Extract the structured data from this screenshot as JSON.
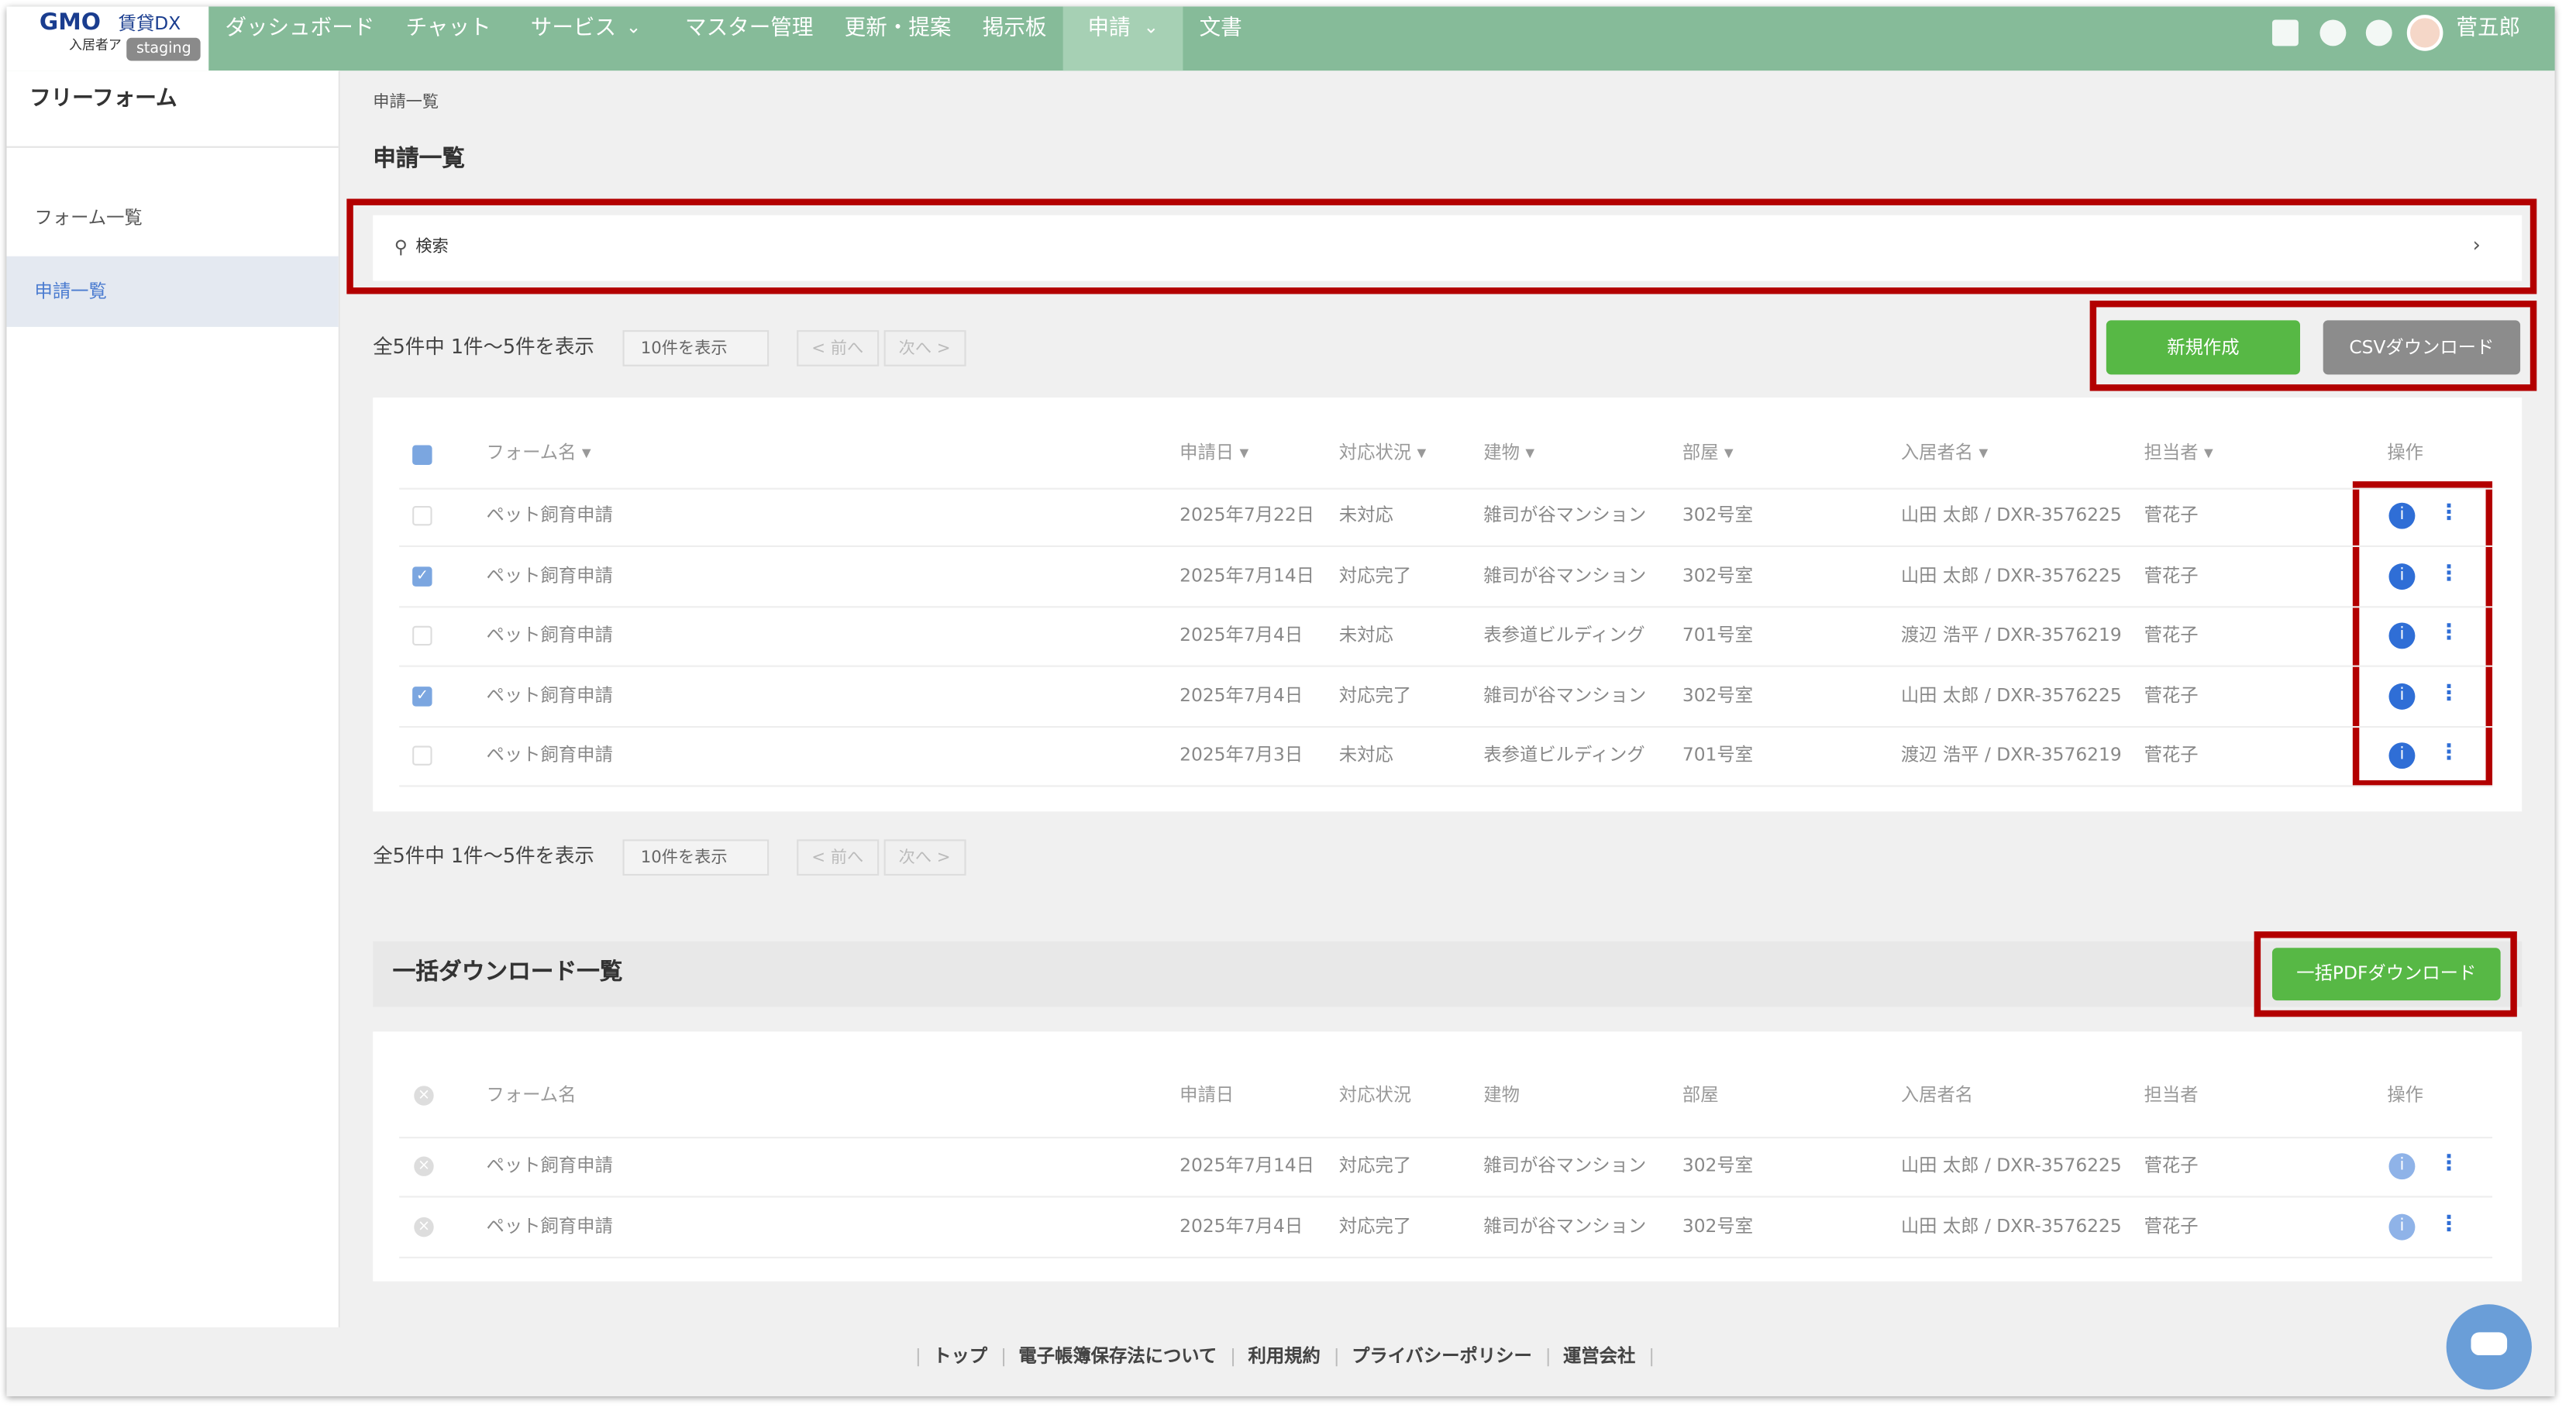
{
  "header": {
    "logo": "GMO",
    "logo_sub": "賃貸DX",
    "logo_sub2": "入居者ア",
    "env": "staging",
    "nav": [
      "ダッシュボード",
      "チャット",
      "サービス",
      "マスター管理",
      "更新・提案",
      "掲示板",
      "申請",
      "文書"
    ],
    "user": "菅五郎"
  },
  "sidebar": {
    "title": "フリーフォーム",
    "items": [
      "フォーム一覧",
      "申請一覧"
    ]
  },
  "breadcrumb": "申請一覧",
  "page_title": "申請一覧",
  "search": "検索",
  "pagination": {
    "summary": "全5件中 1件〜5件を表示",
    "per_page": "10件を表示",
    "prev": "< 前へ",
    "next": "次へ >"
  },
  "actions": {
    "create": "新規作成",
    "csv": "CSVダウンロード"
  },
  "table": {
    "headers": [
      "フォーム名",
      "申請日",
      "対応状況",
      "建物",
      "部屋",
      "入居者名",
      "担当者",
      "操作"
    ],
    "rows": [
      {
        "checked": false,
        "cells": [
          "ペット飼育申請",
          "2025年7月22日",
          "未対応",
          "雑司が谷マンション",
          "302号室",
          "山田 太郎 / DXR-3576225",
          "菅花子"
        ]
      },
      {
        "checked": true,
        "cells": [
          "ペット飼育申請",
          "2025年7月14日",
          "対応完了",
          "雑司が谷マンション",
          "302号室",
          "山田 太郎 / DXR-3576225",
          "菅花子"
        ]
      },
      {
        "checked": false,
        "cells": [
          "ペット飼育申請",
          "2025年7月4日",
          "未対応",
          "表参道ビルディング",
          "701号室",
          "渡辺 浩平 / DXR-3576219",
          "菅花子"
        ]
      },
      {
        "checked": true,
        "cells": [
          "ペット飼育申請",
          "2025年7月4日",
          "対応完了",
          "雑司が谷マンション",
          "302号室",
          "山田 太郎 / DXR-3576225",
          "菅花子"
        ]
      },
      {
        "checked": false,
        "cells": [
          "ペット飼育申請",
          "2025年7月3日",
          "未対応",
          "表参道ビルディング",
          "701号室",
          "渡辺 浩平 / DXR-3576219",
          "菅花子"
        ]
      }
    ]
  },
  "bulk": {
    "title": "一括ダウンロード一覧",
    "button": "一括PDFダウンロード",
    "headers": [
      "フォーム名",
      "申請日",
      "対応状況",
      "建物",
      "部屋",
      "入居者名",
      "担当者",
      "操作"
    ],
    "rows": [
      [
        "ペット飼育申請",
        "2025年7月14日",
        "対応完了",
        "雑司が谷マンション",
        "302号室",
        "山田 太郎 / DXR-3576225",
        "菅花子"
      ],
      [
        "ペット飼育申請",
        "2025年7月4日",
        "対応完了",
        "雑司が谷マンション",
        "302号室",
        "山田 太郎 / DXR-3576225",
        "菅花子"
      ]
    ]
  },
  "footer": [
    "トップ",
    "電子帳簿保存法について",
    "利用規約",
    "プライバシーポリシー",
    "運営会社"
  ]
}
